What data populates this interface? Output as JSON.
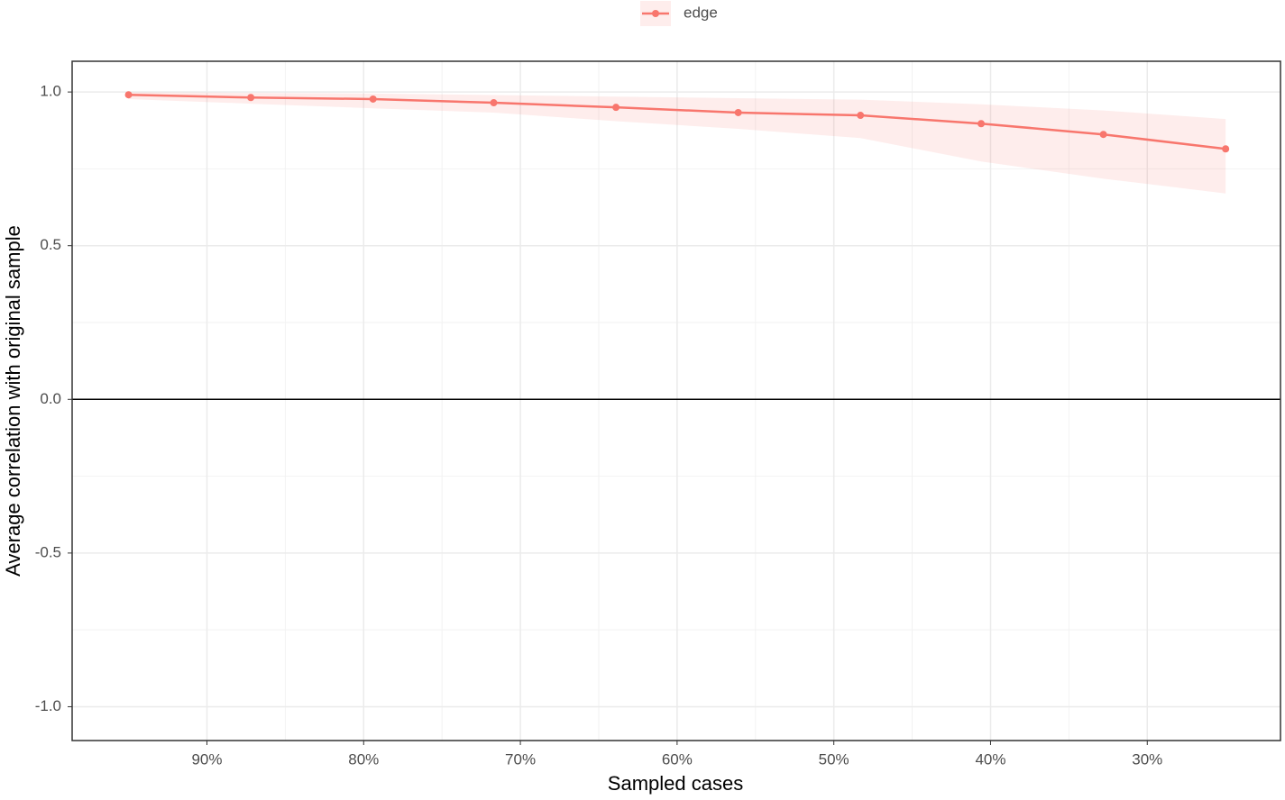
{
  "chart_data": {
    "type": "line",
    "x_label": "Sampled cases",
    "y_label": "Average correlation with original sample",
    "x": [
      95,
      87.2,
      79.4,
      71.7,
      63.9,
      56.1,
      48.3,
      40.6,
      32.8,
      25
    ],
    "series": [
      {
        "name": "edge",
        "color": "#F8766D",
        "values": [
          0.991,
          0.982,
          0.977,
          0.965,
          0.95,
          0.933,
          0.924,
          0.897,
          0.862,
          0.815
        ],
        "lower": [
          0.977,
          0.962,
          0.947,
          0.933,
          0.905,
          0.88,
          0.85,
          0.774,
          0.718,
          0.67
        ],
        "upper": [
          0.999,
          0.997,
          0.995,
          0.99,
          0.985,
          0.98,
          0.975,
          0.96,
          0.94,
          0.912
        ]
      }
    ],
    "xlim": [
      98.6,
      21.5
    ],
    "xticks": [
      {
        "value": 90,
        "label": "90%"
      },
      {
        "value": 80,
        "label": "80%"
      },
      {
        "value": 70,
        "label": "70%"
      },
      {
        "value": 60,
        "label": "60%"
      },
      {
        "value": 50,
        "label": "50%"
      },
      {
        "value": 40,
        "label": "40%"
      },
      {
        "value": 30,
        "label": "30%"
      }
    ],
    "ylim": [
      -1.11,
      1.1
    ],
    "yticks": [
      {
        "value": -1,
        "label": "-1.0"
      },
      {
        "value": -0.5,
        "label": "-0.5"
      },
      {
        "value": 0,
        "label": "0.0"
      },
      {
        "value": 0.5,
        "label": "0.5"
      },
      {
        "value": 1,
        "label": "1.0"
      }
    ],
    "hline": 0,
    "grid": true,
    "minor_grid": true,
    "legend": "top"
  }
}
